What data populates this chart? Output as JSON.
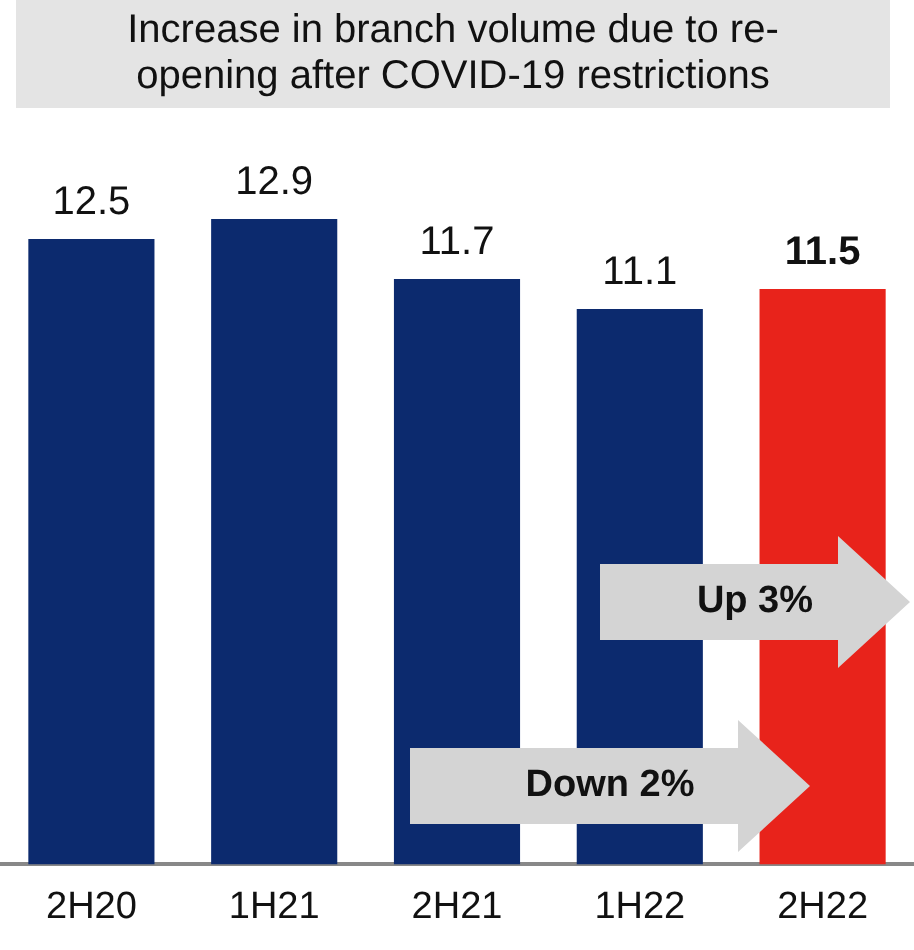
{
  "chart_data": {
    "type": "bar",
    "title": "Increase in branch volume due to re-opening after COVID-19 restrictions",
    "categories": [
      "2H20",
      "1H21",
      "2H21",
      "1H22",
      "2H22"
    ],
    "values": [
      12.5,
      12.9,
      11.7,
      11.1,
      11.5
    ],
    "colors": [
      "#0c2a6e",
      "#0c2a6e",
      "#0c2a6e",
      "#0c2a6e",
      "#e8231b"
    ],
    "data_labels": true,
    "annotations": [
      "Up 3%",
      "Down 2%"
    ]
  }
}
